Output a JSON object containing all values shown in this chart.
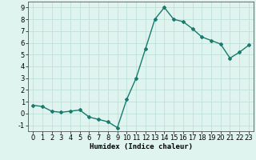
{
  "x": [
    0,
    1,
    2,
    3,
    4,
    5,
    6,
    7,
    8,
    9,
    10,
    11,
    12,
    13,
    14,
    15,
    16,
    17,
    18,
    19,
    20,
    21,
    22,
    23
  ],
  "y": [
    0.7,
    0.6,
    0.2,
    0.1,
    0.2,
    0.3,
    -0.3,
    -0.5,
    -0.7,
    -1.2,
    1.2,
    3.0,
    5.5,
    8.0,
    9.0,
    8.0,
    7.8,
    7.2,
    6.5,
    6.2,
    5.9,
    4.7,
    5.2,
    5.8
  ],
  "xlabel": "Humidex (Indice chaleur)",
  "xlim": [
    -0.5,
    23.5
  ],
  "ylim": [
    -1.5,
    9.5
  ],
  "yticks": [
    -1,
    0,
    1,
    2,
    3,
    4,
    5,
    6,
    7,
    8,
    9
  ],
  "xticks": [
    0,
    1,
    2,
    3,
    4,
    5,
    6,
    7,
    8,
    9,
    10,
    11,
    12,
    13,
    14,
    15,
    16,
    17,
    18,
    19,
    20,
    21,
    22,
    23
  ],
  "line_color": "#1a7a6e",
  "marker": "D",
  "marker_size": 2.0,
  "line_width": 1.0,
  "bg_color": "#dff4ef",
  "grid_color": "#b8ddd6",
  "xlabel_fontsize": 6.5,
  "tick_fontsize": 6
}
